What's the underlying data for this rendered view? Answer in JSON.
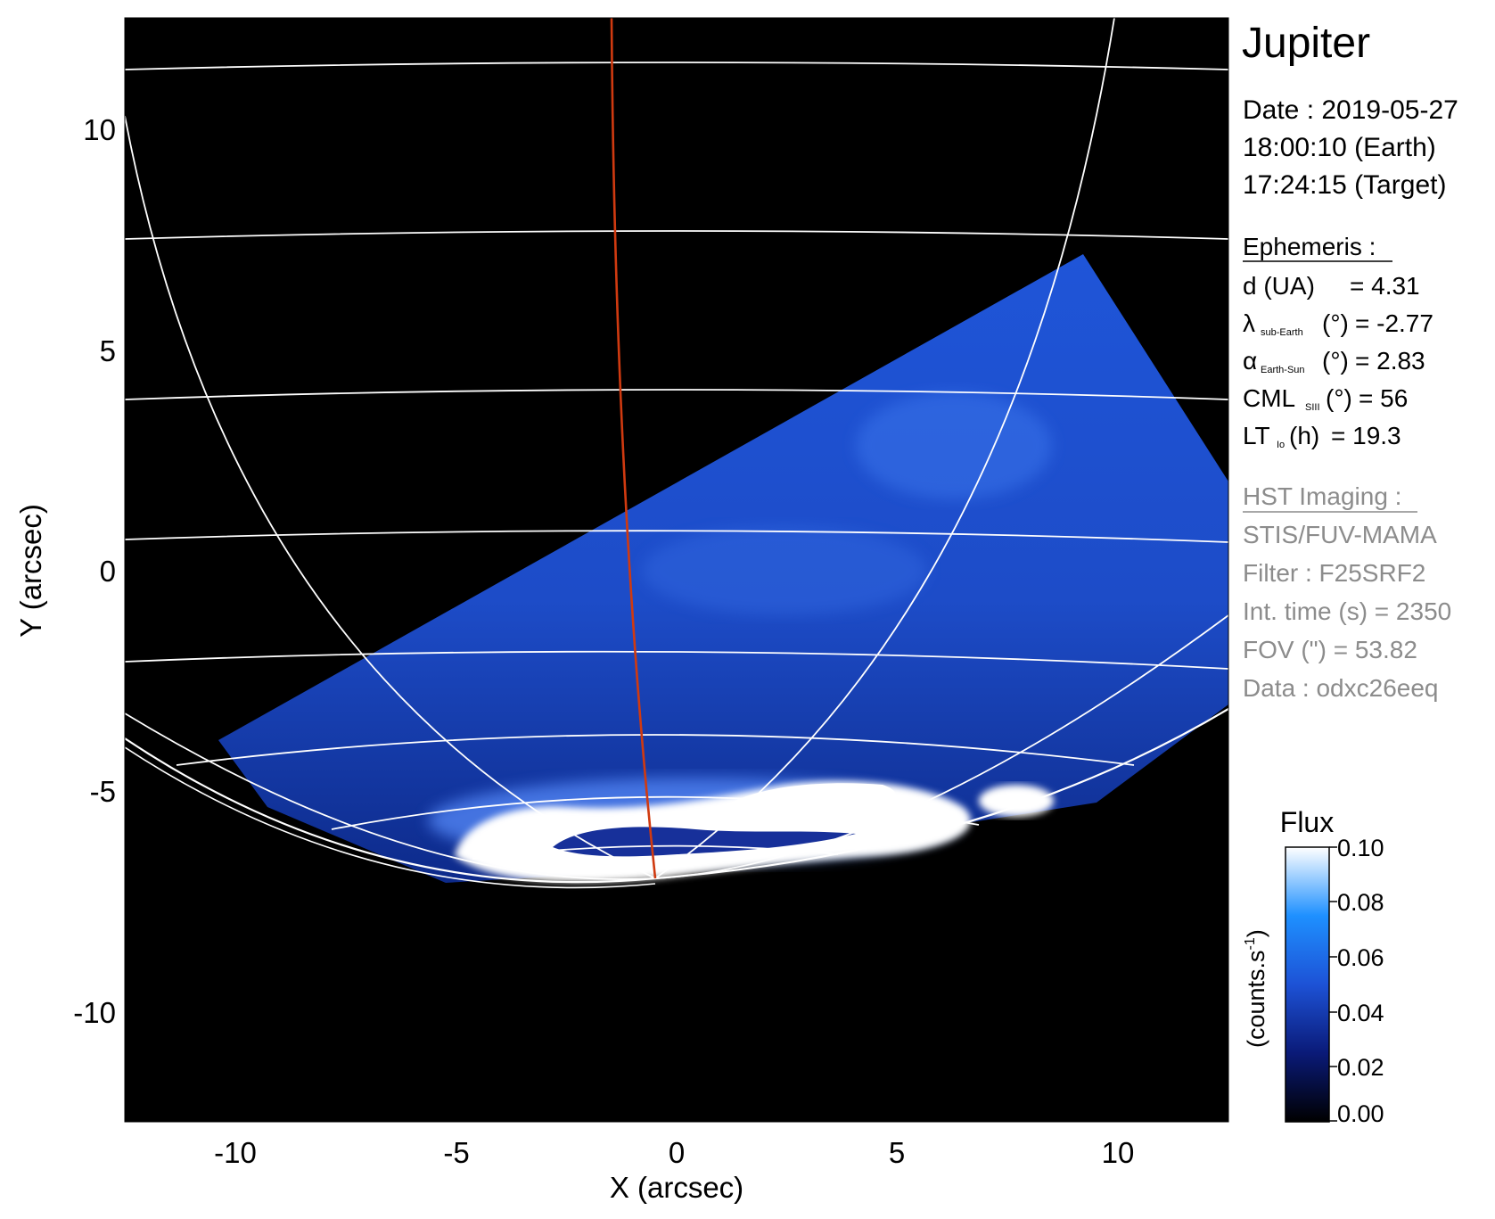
{
  "figure": {
    "title": "Jupiter",
    "x_axis_label": "X (arcsec)",
    "y_axis_label": "Y (arcsec)",
    "x_ticks": [
      "-10",
      "-5",
      "0",
      "5",
      "10"
    ],
    "y_ticks": [
      "10",
      "5",
      "0",
      "-5",
      "-10"
    ],
    "x_range": [
      -12.5,
      12.5
    ],
    "y_range": [
      -12.5,
      12.5
    ]
  },
  "date": {
    "line1": "Date : 2019-05-27",
    "line2": "18:00:10 (Earth)",
    "line3": "17:24:15 (Target)"
  },
  "ephemeris": {
    "header": "Ephemeris :",
    "d_label": "d (UA)",
    "d_value": "= 4.31",
    "lat_symbol": "λ",
    "lat_sub": "sub-Earth",
    "lat_unit": "(°)",
    "lat_value": "= -2.77",
    "phase_symbol": "α",
    "phase_sub": "Earth-Sun",
    "phase_unit": "(°)",
    "phase_value": "= 2.83",
    "cml_symbol": "CML",
    "cml_sub": "SIII",
    "cml_unit": "(°)",
    "cml_value": "= 56",
    "lt_symbol": "LT",
    "lt_sub": "Io",
    "lt_unit": "(h)",
    "lt_value": "= 19.3"
  },
  "hst": {
    "header": "HST Imaging :",
    "instrument": "STIS/FUV-MAMA",
    "filter": "Filter : F25SRF2",
    "int_time": "Int. time (s) = 2350",
    "fov": "FOV (\") = 53.82",
    "data": "Data : odxc26eeq"
  },
  "colorbar": {
    "title": "Flux",
    "label_main": "(counts.s",
    "label_sup": "-1",
    "label_close": ")",
    "ticks": [
      "0.10",
      "0.08",
      "0.06",
      "0.04",
      "0.02",
      "0.00"
    ],
    "colors": [
      "#000000",
      "#0a1a78",
      "#1d52d6",
      "#1e90ff",
      "#ffffff"
    ]
  },
  "colors": {
    "background": "#000000",
    "grid": "#ffffff",
    "meridian": "#d03a10",
    "aurora": "#ffffff"
  }
}
